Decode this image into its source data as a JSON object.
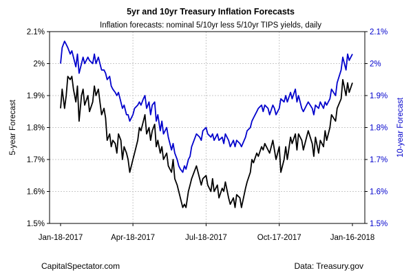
{
  "chart_data": {
    "type": "line",
    "title": "5yr and 10yr Treasury Inflation Forecasts",
    "subtitle": "Inflation forecasts: nominal 5/10yr less 5/10yr TIPS yields, daily",
    "ylabel_left": "5-year Forecast",
    "ylabel_right": "10-year Forecast",
    "ylim": [
      1.5,
      2.1
    ],
    "y_ticks": [
      1.5,
      1.6,
      1.7,
      1.8,
      1.9,
      2.0,
      2.1
    ],
    "y_tick_labels": [
      "1.5%",
      "1.6%",
      "1.7%",
      "1.8%",
      "1.9%",
      "2%",
      "2.1%"
    ],
    "xlim": [
      "2017-01-18",
      "2018-01-16"
    ],
    "x_ticks": [
      "2017-01-18",
      "2017-04-18",
      "2017-07-18",
      "2017-10-17",
      "2018-01-16"
    ],
    "x_tick_labels": [
      "Jan-18-2017",
      "Apr-18-2017",
      "Jul-18-2017",
      "Oct-17-2017",
      "Jan-16-2018"
    ],
    "grid": true,
    "colors": {
      "series_5yr": "#000000",
      "series_10yr": "#0000cc",
      "right_axis": "#0000cc",
      "grid": "#c8c8c8"
    },
    "series": [
      {
        "axis": "left",
        "x": [
          "2017-01-18",
          "2017-01-20",
          "2017-01-23",
          "2017-01-25",
          "2017-01-27",
          "2017-01-30",
          "2017-02-01",
          "2017-02-03",
          "2017-02-06",
          "2017-02-08",
          "2017-02-10",
          "2017-02-13",
          "2017-02-15",
          "2017-02-17",
          "2017-02-21",
          "2017-02-23",
          "2017-02-27",
          "2017-03-01",
          "2017-03-03",
          "2017-03-06",
          "2017-03-08",
          "2017-03-10",
          "2017-03-13",
          "2017-03-15",
          "2017-03-17",
          "2017-03-20",
          "2017-03-22",
          "2017-03-24",
          "2017-03-27",
          "2017-03-29",
          "2017-03-31",
          "2017-04-03",
          "2017-04-05",
          "2017-04-07",
          "2017-04-10",
          "2017-04-12",
          "2017-04-14",
          "2017-04-18",
          "2017-04-20",
          "2017-04-24",
          "2017-04-26",
          "2017-04-28",
          "2017-05-01",
          "2017-05-03",
          "2017-05-05",
          "2017-05-08",
          "2017-05-10",
          "2017-05-12",
          "2017-05-15",
          "2017-05-17",
          "2017-05-19",
          "2017-05-22",
          "2017-05-24",
          "2017-05-26",
          "2017-05-30",
          "2017-06-01",
          "2017-06-05",
          "2017-06-07",
          "2017-06-09",
          "2017-06-12",
          "2017-06-14",
          "2017-06-16",
          "2017-06-19",
          "2017-06-21",
          "2017-06-23",
          "2017-06-26",
          "2017-06-28",
          "2017-06-30",
          "2017-07-03",
          "2017-07-06",
          "2017-07-10",
          "2017-07-12",
          "2017-07-14",
          "2017-07-18",
          "2017-07-20",
          "2017-07-24",
          "2017-07-26",
          "2017-07-28",
          "2017-08-01",
          "2017-08-03",
          "2017-08-07",
          "2017-08-09",
          "2017-08-11",
          "2017-08-15",
          "2017-08-17",
          "2017-08-21",
          "2017-08-23",
          "2017-08-25",
          "2017-08-29",
          "2017-08-31",
          "2017-09-05",
          "2017-09-07",
          "2017-09-11",
          "2017-09-13",
          "2017-09-15",
          "2017-09-19",
          "2017-09-21",
          "2017-09-25",
          "2017-09-27",
          "2017-09-29",
          "2017-10-03",
          "2017-10-05",
          "2017-10-09",
          "2017-10-11",
          "2017-10-13",
          "2017-10-17",
          "2017-10-19",
          "2017-10-23",
          "2017-10-25",
          "2017-10-27",
          "2017-10-31",
          "2017-11-02",
          "2017-11-06",
          "2017-11-08",
          "2017-11-10",
          "2017-11-14",
          "2017-11-16",
          "2017-11-20",
          "2017-11-22",
          "2017-11-27",
          "2017-11-29",
          "2017-12-01",
          "2017-12-05",
          "2017-12-07",
          "2017-12-11",
          "2017-12-13",
          "2017-12-15",
          "2017-12-19",
          "2017-12-21",
          "2017-12-26",
          "2017-12-28",
          "2018-01-02",
          "2018-01-04",
          "2018-01-08",
          "2018-01-10",
          "2018-01-12",
          "2018-01-16"
        ],
        "values": [
          1.86,
          1.92,
          1.86,
          1.9,
          1.96,
          1.95,
          1.96,
          1.92,
          1.88,
          1.93,
          1.82,
          1.9,
          1.92,
          1.87,
          1.9,
          1.85,
          1.88,
          1.93,
          1.9,
          1.92,
          1.88,
          1.84,
          1.86,
          1.83,
          1.76,
          1.78,
          1.74,
          1.76,
          1.75,
          1.72,
          1.78,
          1.76,
          1.7,
          1.74,
          1.72,
          1.7,
          1.66,
          1.7,
          1.72,
          1.76,
          1.8,
          1.79,
          1.82,
          1.84,
          1.78,
          1.8,
          1.76,
          1.79,
          1.81,
          1.74,
          1.76,
          1.72,
          1.74,
          1.7,
          1.72,
          1.68,
          1.66,
          1.7,
          1.64,
          1.62,
          1.6,
          1.58,
          1.55,
          1.56,
          1.55,
          1.6,
          1.62,
          1.64,
          1.66,
          1.68,
          1.64,
          1.62,
          1.64,
          1.65,
          1.62,
          1.6,
          1.64,
          1.6,
          1.62,
          1.58,
          1.61,
          1.6,
          1.63,
          1.58,
          1.56,
          1.58,
          1.55,
          1.59,
          1.58,
          1.55,
          1.61,
          1.63,
          1.66,
          1.7,
          1.69,
          1.72,
          1.71,
          1.74,
          1.73,
          1.75,
          1.73,
          1.72,
          1.76,
          1.73,
          1.7,
          1.74,
          1.66,
          1.7,
          1.74,
          1.7,
          1.77,
          1.75,
          1.78,
          1.73,
          1.78,
          1.76,
          1.73,
          1.77,
          1.79,
          1.75,
          1.71,
          1.77,
          1.72,
          1.76,
          1.74,
          1.79,
          1.76,
          1.8,
          1.84,
          1.82,
          1.86,
          1.89,
          1.95,
          1.9,
          1.94,
          1.91,
          1.94
        ]
      },
      {
        "axis": "right",
        "x": [
          "2017-01-18",
          "2017-01-20",
          "2017-01-23",
          "2017-01-25",
          "2017-01-27",
          "2017-01-30",
          "2017-02-01",
          "2017-02-03",
          "2017-02-06",
          "2017-02-08",
          "2017-02-10",
          "2017-02-13",
          "2017-02-15",
          "2017-02-17",
          "2017-02-21",
          "2017-02-23",
          "2017-02-27",
          "2017-03-01",
          "2017-03-03",
          "2017-03-06",
          "2017-03-08",
          "2017-03-10",
          "2017-03-13",
          "2017-03-15",
          "2017-03-17",
          "2017-03-20",
          "2017-03-22",
          "2017-03-24",
          "2017-03-27",
          "2017-03-29",
          "2017-03-31",
          "2017-04-03",
          "2017-04-05",
          "2017-04-07",
          "2017-04-10",
          "2017-04-12",
          "2017-04-14",
          "2017-04-18",
          "2017-04-20",
          "2017-04-24",
          "2017-04-26",
          "2017-04-28",
          "2017-05-01",
          "2017-05-03",
          "2017-05-05",
          "2017-05-08",
          "2017-05-10",
          "2017-05-12",
          "2017-05-15",
          "2017-05-17",
          "2017-05-19",
          "2017-05-22",
          "2017-05-24",
          "2017-05-26",
          "2017-05-30",
          "2017-06-01",
          "2017-06-05",
          "2017-06-07",
          "2017-06-09",
          "2017-06-12",
          "2017-06-14",
          "2017-06-16",
          "2017-06-19",
          "2017-06-21",
          "2017-06-23",
          "2017-06-26",
          "2017-06-28",
          "2017-06-30",
          "2017-07-03",
          "2017-07-06",
          "2017-07-10",
          "2017-07-12",
          "2017-07-14",
          "2017-07-18",
          "2017-07-20",
          "2017-07-24",
          "2017-07-26",
          "2017-07-28",
          "2017-08-01",
          "2017-08-03",
          "2017-08-07",
          "2017-08-09",
          "2017-08-11",
          "2017-08-15",
          "2017-08-17",
          "2017-08-21",
          "2017-08-23",
          "2017-08-25",
          "2017-08-29",
          "2017-08-31",
          "2017-09-05",
          "2017-09-07",
          "2017-09-11",
          "2017-09-13",
          "2017-09-15",
          "2017-09-19",
          "2017-09-21",
          "2017-09-25",
          "2017-09-27",
          "2017-09-29",
          "2017-10-03",
          "2017-10-05",
          "2017-10-09",
          "2017-10-11",
          "2017-10-13",
          "2017-10-17",
          "2017-10-19",
          "2017-10-23",
          "2017-10-25",
          "2017-10-27",
          "2017-10-31",
          "2017-11-02",
          "2017-11-06",
          "2017-11-08",
          "2017-11-10",
          "2017-11-14",
          "2017-11-16",
          "2017-11-20",
          "2017-11-22",
          "2017-11-27",
          "2017-11-29",
          "2017-12-01",
          "2017-12-05",
          "2017-12-07",
          "2017-12-11",
          "2017-12-13",
          "2017-12-15",
          "2017-12-19",
          "2017-12-21",
          "2017-12-26",
          "2017-12-28",
          "2018-01-02",
          "2018-01-04",
          "2018-01-08",
          "2018-01-10",
          "2018-01-12",
          "2018-01-16"
        ],
        "values": [
          2.0,
          2.05,
          2.07,
          2.06,
          2.05,
          2.03,
          2.04,
          2.02,
          1.99,
          2.03,
          1.97,
          2.0,
          2.02,
          2.0,
          2.02,
          2.01,
          2.0,
          2.03,
          2.0,
          2.02,
          2.0,
          1.98,
          1.98,
          1.97,
          1.95,
          1.96,
          1.93,
          1.92,
          1.91,
          1.9,
          1.91,
          1.88,
          1.86,
          1.87,
          1.84,
          1.84,
          1.82,
          1.84,
          1.86,
          1.87,
          1.88,
          1.87,
          1.89,
          1.9,
          1.86,
          1.88,
          1.84,
          1.87,
          1.88,
          1.82,
          1.84,
          1.79,
          1.82,
          1.78,
          1.8,
          1.77,
          1.73,
          1.75,
          1.72,
          1.7,
          1.68,
          1.67,
          1.66,
          1.68,
          1.67,
          1.7,
          1.71,
          1.74,
          1.76,
          1.78,
          1.77,
          1.76,
          1.79,
          1.8,
          1.78,
          1.77,
          1.78,
          1.76,
          1.78,
          1.76,
          1.77,
          1.75,
          1.78,
          1.76,
          1.74,
          1.76,
          1.74,
          1.76,
          1.75,
          1.74,
          1.77,
          1.79,
          1.8,
          1.82,
          1.83,
          1.85,
          1.86,
          1.87,
          1.85,
          1.87,
          1.86,
          1.84,
          1.87,
          1.86,
          1.84,
          1.86,
          1.89,
          1.88,
          1.9,
          1.88,
          1.91,
          1.89,
          1.92,
          1.88,
          1.9,
          1.86,
          1.85,
          1.87,
          1.88,
          1.86,
          1.84,
          1.87,
          1.86,
          1.88,
          1.86,
          1.88,
          1.87,
          1.89,
          1.92,
          1.9,
          1.94,
          1.98,
          2.02,
          1.98,
          2.03,
          2.01,
          2.03
        ]
      }
    ]
  },
  "footer": {
    "source_left": "CapitalSpectator.com",
    "source_right": "Data: Treasury.gov"
  }
}
